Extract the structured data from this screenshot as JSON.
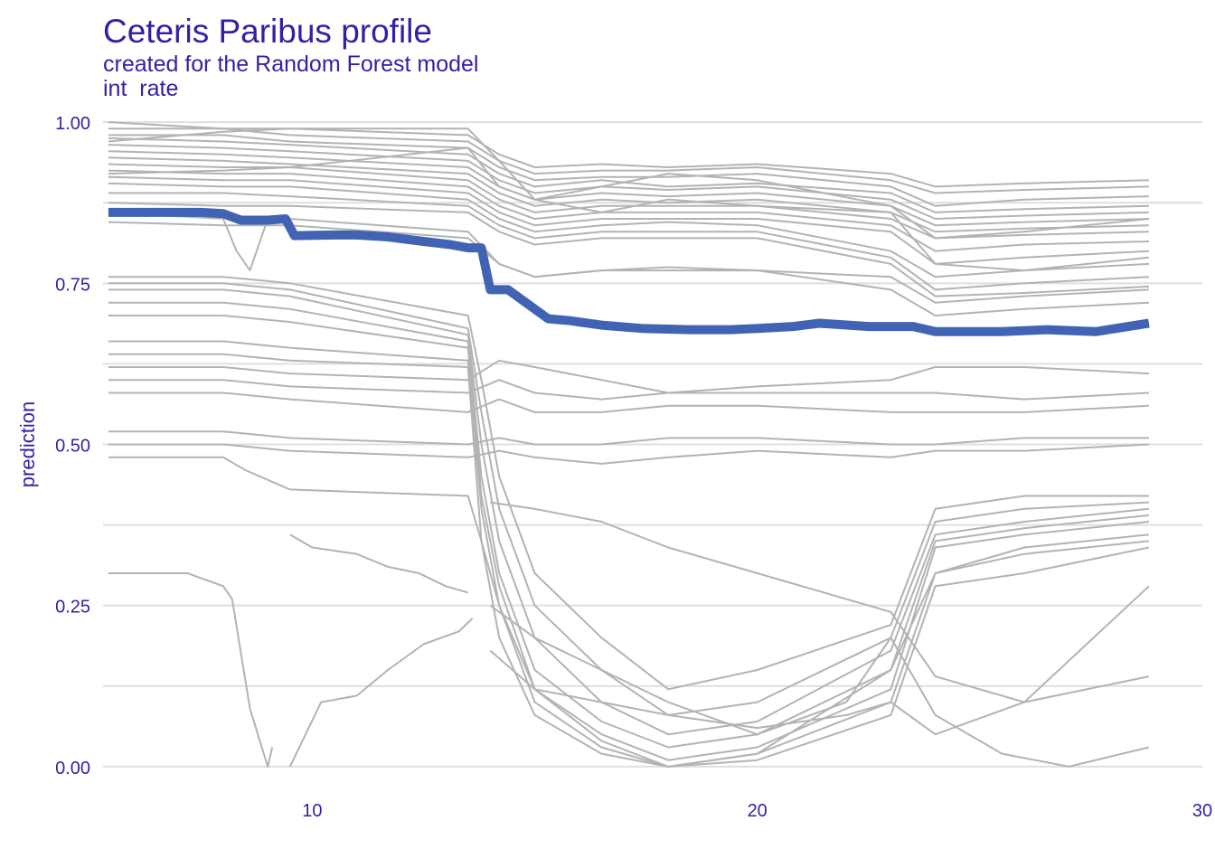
{
  "colors": {
    "text": "#371ea3",
    "grid": "#dfdfdf",
    "ice_line": "#b3b3b3",
    "profile_line": "#4063b3"
  },
  "header": {
    "title": "Ceteris Paribus profile",
    "subtitle": "created for the Random Forest model",
    "variable": "int  rate"
  },
  "chart_data": {
    "type": "line",
    "title": "Ceteris Paribus profile",
    "subtitle": "created for the Random Forest model",
    "variable": "int  rate",
    "xlabel": "",
    "ylabel": "prediction",
    "xlim": [
      5.3,
      30
    ],
    "ylim": [
      -0.01,
      1.01
    ],
    "x_ticks": [
      10,
      20,
      30
    ],
    "y_ticks": [
      0.0,
      0.25,
      0.5,
      0.75,
      1.0
    ],
    "y_tick_labels": [
      "0.00",
      "0.25",
      "0.50",
      "0.75",
      "1.00"
    ],
    "grid": true,
    "legend": "none",
    "series": [
      {
        "role": "aggregated-profile",
        "x": [
          5.42,
          6.5,
          7.5,
          8.0,
          8.4,
          9.0,
          9.4,
          9.6,
          10.5,
          11.0,
          11.7,
          12.5,
          13.1,
          13.5,
          13.8,
          14.0,
          14.4,
          14.8,
          15.3,
          15.8,
          16.5,
          17.4,
          18.5,
          19.4,
          20.0,
          20.8,
          21.4,
          22.5,
          23.5,
          24.0,
          24.6,
          25.5,
          26.5,
          27.6,
          28.8
        ],
        "y": [
          0.86,
          0.86,
          0.86,
          0.858,
          0.848,
          0.848,
          0.85,
          0.824,
          0.825,
          0.825,
          0.822,
          0.815,
          0.81,
          0.805,
          0.805,
          0.74,
          0.74,
          0.72,
          0.695,
          0.692,
          0.685,
          0.68,
          0.678,
          0.678,
          0.68,
          0.683,
          0.688,
          0.683,
          0.683,
          0.675,
          0.675,
          0.675,
          0.678,
          0.675,
          0.688
        ]
      },
      {
        "role": "ice",
        "x": [
          5.42,
          8.0,
          9.5,
          13.5,
          14.2,
          15.0,
          16.5,
          18.0,
          20.0,
          23.0,
          24.0,
          26.0,
          28.8
        ],
        "y": [
          1.0,
          0.99,
          0.99,
          0.98,
          0.95,
          0.93,
          0.935,
          0.93,
          0.935,
          0.92,
          0.9,
          0.905,
          0.91
        ]
      },
      {
        "role": "ice",
        "x": [
          5.42,
          8.0,
          9.5,
          13.5,
          14.2,
          15.0,
          16.5,
          18.0,
          20.0,
          23.0,
          24.0,
          26.0,
          28.8
        ],
        "y": [
          0.99,
          0.99,
          0.98,
          0.97,
          0.94,
          0.92,
          0.925,
          0.925,
          0.93,
          0.91,
          0.89,
          0.895,
          0.9
        ]
      },
      {
        "role": "ice",
        "x": [
          5.42,
          8.0,
          9.5,
          13.5,
          14.2,
          15.0,
          16.5,
          18.0,
          20.0,
          23.0,
          24.0,
          26.0,
          28.8
        ],
        "y": [
          0.98,
          0.98,
          0.97,
          0.96,
          0.93,
          0.91,
          0.915,
          0.915,
          0.92,
          0.9,
          0.87,
          0.88,
          0.885
        ]
      },
      {
        "role": "ice",
        "x": [
          5.42,
          8.0,
          9.5,
          13.5,
          14.2,
          15.0,
          16.5,
          18.0,
          20.0,
          23.0,
          24.0,
          26.0,
          28.8
        ],
        "y": [
          0.975,
          0.97,
          0.965,
          0.95,
          0.92,
          0.9,
          0.91,
          0.9,
          0.905,
          0.89,
          0.86,
          0.865,
          0.87
        ]
      },
      {
        "role": "ice",
        "x": [
          5.42,
          8.0,
          9.5,
          13.5,
          14.2,
          15.0,
          16.5,
          18.0,
          20.0,
          23.0,
          24.0,
          26.0,
          28.8
        ],
        "y": [
          0.965,
          0.96,
          0.955,
          0.94,
          0.91,
          0.89,
          0.9,
          0.895,
          0.9,
          0.88,
          0.85,
          0.855,
          0.86
        ]
      },
      {
        "role": "ice",
        "x": [
          5.42,
          8.0,
          9.5,
          13.5,
          14.2,
          15.0,
          16.5,
          18.0,
          20.0,
          23.0,
          24.0,
          26.0,
          28.8
        ],
        "y": [
          0.955,
          0.95,
          0.945,
          0.93,
          0.9,
          0.88,
          0.89,
          0.885,
          0.89,
          0.87,
          0.84,
          0.845,
          0.85
        ]
      },
      {
        "role": "ice",
        "x": [
          5.42,
          8.0,
          9.5,
          13.5,
          14.2,
          15.0,
          16.5,
          18.0,
          20.0,
          23.0,
          24.0,
          26.0,
          28.8
        ],
        "y": [
          0.945,
          0.94,
          0.935,
          0.92,
          0.89,
          0.87,
          0.88,
          0.875,
          0.88,
          0.86,
          0.83,
          0.835,
          0.84
        ]
      },
      {
        "role": "ice",
        "x": [
          5.42,
          8.0,
          9.5,
          13.5,
          14.2,
          15.0,
          16.5,
          18.0,
          20.0,
          23.0,
          24.0,
          26.0,
          28.8
        ],
        "y": [
          0.935,
          0.93,
          0.93,
          0.91,
          0.88,
          0.86,
          0.87,
          0.87,
          0.87,
          0.85,
          0.82,
          0.825,
          0.83
        ]
      },
      {
        "role": "ice",
        "x": [
          5.42,
          8.0,
          9.5,
          13.5,
          14.2,
          15.0,
          16.5,
          18.0,
          20.0,
          23.0,
          24.0,
          26.0,
          28.8
        ],
        "y": [
          0.925,
          0.92,
          0.92,
          0.9,
          0.87,
          0.85,
          0.86,
          0.86,
          0.86,
          0.84,
          0.8,
          0.81,
          0.815
        ]
      },
      {
        "role": "ice",
        "x": [
          5.42,
          8.0,
          9.5,
          13.5,
          14.2,
          15.0,
          16.5,
          18.0,
          20.0,
          23.0,
          24.0,
          26.0,
          28.8
        ],
        "y": [
          0.915,
          0.91,
          0.91,
          0.89,
          0.86,
          0.84,
          0.85,
          0.85,
          0.85,
          0.83,
          0.78,
          0.79,
          0.8
        ]
      },
      {
        "role": "ice",
        "x": [
          5.42,
          8.0,
          9.5,
          13.5,
          14.2,
          15.0,
          16.5,
          18.0,
          20.0,
          23.0,
          24.0,
          26.0,
          28.8
        ],
        "y": [
          0.905,
          0.9,
          0.9,
          0.88,
          0.85,
          0.83,
          0.84,
          0.845,
          0.84,
          0.8,
          0.76,
          0.77,
          0.78
        ]
      },
      {
        "role": "ice",
        "x": [
          5.42,
          8.0,
          9.5,
          13.5,
          14.2,
          15.0,
          16.5,
          18.0,
          20.0,
          23.0,
          24.0,
          26.0,
          28.8
        ],
        "y": [
          0.89,
          0.89,
          0.885,
          0.87,
          0.84,
          0.82,
          0.83,
          0.83,
          0.83,
          0.79,
          0.74,
          0.75,
          0.76
        ]
      },
      {
        "role": "ice",
        "x": [
          5.42,
          8.0,
          9.5,
          13.5,
          14.2,
          15.0,
          16.5,
          18.0,
          20.0,
          23.0,
          24.0,
          26.0,
          28.8
        ],
        "y": [
          0.875,
          0.87,
          0.87,
          0.86,
          0.83,
          0.81,
          0.82,
          0.82,
          0.82,
          0.78,
          0.73,
          0.735,
          0.745
        ]
      },
      {
        "role": "ice",
        "x": [
          5.42,
          8.0,
          8.3,
          8.6,
          9.0,
          9.5,
          13.5,
          14.2,
          15.0,
          16.5,
          18.0,
          20.0,
          23.0,
          24.0,
          26.0,
          28.8
        ],
        "y": [
          0.86,
          0.85,
          0.8,
          0.77,
          0.85,
          0.85,
          0.83,
          0.78,
          0.76,
          0.77,
          0.775,
          0.77,
          0.76,
          0.72,
          0.73,
          0.74
        ]
      },
      {
        "role": "ice",
        "x": [
          5.42,
          8.0,
          9.5,
          13.5,
          14.2,
          15.0,
          16.5,
          18.0,
          20.0,
          23.0,
          24.0,
          26.0,
          28.8
        ],
        "y": [
          0.845,
          0.84,
          0.84,
          0.82,
          0.78,
          0.76,
          0.77,
          0.77,
          0.77,
          0.74,
          0.7,
          0.71,
          0.72
        ]
      },
      {
        "role": "ice",
        "x": [
          5.42,
          8.0,
          9.5,
          13.5,
          13.8,
          14.2,
          15.0,
          16.5,
          18.0,
          20.0,
          23.0,
          24.0,
          26.0,
          28.8
        ],
        "y": [
          0.76,
          0.76,
          0.75,
          0.7,
          0.6,
          0.45,
          0.3,
          0.2,
          0.12,
          0.15,
          0.22,
          0.4,
          0.42,
          0.42
        ]
      },
      {
        "role": "ice",
        "x": [
          5.42,
          8.0,
          9.5,
          13.5,
          13.8,
          14.2,
          15.0,
          16.5,
          18.0,
          20.0,
          23.0,
          24.0,
          26.0,
          28.8
        ],
        "y": [
          0.75,
          0.75,
          0.74,
          0.68,
          0.55,
          0.4,
          0.25,
          0.15,
          0.08,
          0.1,
          0.2,
          0.38,
          0.4,
          0.41
        ]
      },
      {
        "role": "ice",
        "x": [
          5.42,
          8.0,
          9.5,
          13.5,
          13.8,
          14.2,
          15.0,
          16.5,
          18.0,
          20.0,
          23.0,
          24.0,
          26.0,
          28.8
        ],
        "y": [
          0.74,
          0.74,
          0.73,
          0.67,
          0.5,
          0.35,
          0.2,
          0.1,
          0.05,
          0.07,
          0.18,
          0.36,
          0.38,
          0.4
        ]
      },
      {
        "role": "ice",
        "x": [
          5.42,
          8.0,
          9.5,
          13.5,
          13.8,
          14.2,
          15.0,
          16.5,
          18.0,
          20.0,
          23.0,
          24.0,
          26.0,
          28.8
        ],
        "y": [
          0.72,
          0.72,
          0.71,
          0.66,
          0.45,
          0.3,
          0.15,
          0.07,
          0.03,
          0.05,
          0.15,
          0.35,
          0.37,
          0.39
        ]
      },
      {
        "role": "ice",
        "x": [
          5.42,
          8.0,
          9.5,
          13.5,
          13.8,
          14.2,
          15.0,
          16.5,
          18.0,
          20.0,
          23.0,
          24.0,
          26.0,
          28.8
        ],
        "y": [
          0.7,
          0.7,
          0.69,
          0.65,
          0.42,
          0.28,
          0.12,
          0.05,
          0.01,
          0.03,
          0.12,
          0.34,
          0.36,
          0.38
        ]
      },
      {
        "role": "ice",
        "x": [
          5.42,
          8.0,
          9.5,
          13.5,
          13.8,
          14.2,
          15.0,
          16.5,
          18.0,
          20.0,
          23.0,
          24.0,
          26.0,
          28.8
        ],
        "y": [
          0.66,
          0.66,
          0.65,
          0.63,
          0.4,
          0.25,
          0.1,
          0.03,
          0.0,
          0.02,
          0.1,
          0.3,
          0.33,
          0.35
        ]
      },
      {
        "role": "ice",
        "x": [
          5.42,
          8.0,
          9.5,
          13.5,
          13.8,
          14.2,
          15.0,
          16.5,
          18.0,
          20.0,
          23.0,
          24.0,
          26.0,
          28.8
        ],
        "y": [
          0.64,
          0.64,
          0.63,
          0.62,
          0.35,
          0.2,
          0.08,
          0.02,
          0.0,
          0.01,
          0.08,
          0.28,
          0.3,
          0.34
        ]
      },
      {
        "role": "ice",
        "x": [
          5.42,
          8.0,
          9.5,
          13.5,
          14.2,
          15.0,
          16.5,
          18.0,
          20.0,
          23.0,
          24.0,
          26.0,
          28.8
        ],
        "y": [
          0.62,
          0.62,
          0.61,
          0.6,
          0.63,
          0.62,
          0.6,
          0.58,
          0.59,
          0.6,
          0.62,
          0.62,
          0.61
        ]
      },
      {
        "role": "ice",
        "x": [
          5.42,
          8.0,
          9.5,
          13.5,
          14.2,
          15.0,
          16.5,
          18.0,
          20.0,
          23.0,
          24.0,
          26.0,
          28.8
        ],
        "y": [
          0.6,
          0.6,
          0.59,
          0.58,
          0.6,
          0.58,
          0.57,
          0.58,
          0.58,
          0.58,
          0.58,
          0.57,
          0.58
        ]
      },
      {
        "role": "ice",
        "x": [
          5.42,
          8.0,
          9.5,
          13.5,
          14.2,
          15.0,
          16.5,
          18.0,
          20.0,
          23.0,
          24.0,
          26.0,
          28.8
        ],
        "y": [
          0.58,
          0.58,
          0.57,
          0.55,
          0.57,
          0.55,
          0.55,
          0.56,
          0.56,
          0.55,
          0.55,
          0.55,
          0.56
        ]
      },
      {
        "role": "ice",
        "x": [
          5.42,
          8.0,
          9.5,
          13.5,
          14.2,
          15.0,
          16.5,
          18.0,
          20.0,
          23.0,
          24.0,
          26.0,
          28.8
        ],
        "y": [
          0.52,
          0.52,
          0.51,
          0.5,
          0.51,
          0.5,
          0.5,
          0.51,
          0.51,
          0.5,
          0.5,
          0.51,
          0.51
        ]
      },
      {
        "role": "ice",
        "x": [
          5.42,
          8.0,
          9.5,
          13.5,
          14.2,
          15.0,
          16.5,
          18.0,
          20.0,
          23.0,
          24.0,
          26.0,
          28.8
        ],
        "y": [
          0.5,
          0.5,
          0.49,
          0.48,
          0.49,
          0.48,
          0.47,
          0.48,
          0.49,
          0.48,
          0.49,
          0.49,
          0.5
        ]
      },
      {
        "role": "ice",
        "x": [
          5.42,
          8.0,
          8.5,
          9.5,
          13.5,
          13.8,
          14.2,
          15.0,
          16.5,
          18.0,
          20.0,
          23.0,
          24.0,
          26.0,
          28.8
        ],
        "y": [
          0.48,
          0.48,
          0.46,
          0.43,
          0.42,
          0.35,
          0.25,
          0.12,
          0.04,
          0.0,
          0.02,
          0.15,
          0.3,
          0.34,
          0.36
        ]
      },
      {
        "role": "ice",
        "x": [
          5.42,
          7.2,
          8.0,
          8.2,
          8.6,
          9.0,
          9.1
        ],
        "y": [
          0.3,
          0.3,
          0.28,
          0.26,
          0.09,
          0.0,
          0.03
        ]
      },
      {
        "role": "ice",
        "x": [
          9.5,
          10.2,
          11.0,
          11.7,
          12.5,
          13.3,
          13.6
        ],
        "y": [
          0.0,
          0.1,
          0.11,
          0.15,
          0.19,
          0.21,
          0.23
        ]
      },
      {
        "role": "ice",
        "x": [
          9.5,
          10.0,
          11.0,
          11.7,
          12.4,
          13.0,
          13.5
        ],
        "y": [
          0.36,
          0.34,
          0.33,
          0.31,
          0.3,
          0.28,
          0.27
        ]
      },
      {
        "role": "ice",
        "x": [
          14.0,
          15.0,
          16.5,
          18.0,
          20.0,
          22.0,
          23.0,
          24.0,
          26.0,
          28.8
        ],
        "y": [
          0.41,
          0.4,
          0.38,
          0.34,
          0.3,
          0.26,
          0.24,
          0.14,
          0.1,
          0.14
        ]
      },
      {
        "role": "ice",
        "x": [
          14.0,
          15.0,
          16.5,
          18.0,
          20.0,
          22.0,
          23.0,
          24.0,
          25.5,
          27.0,
          28.8
        ],
        "y": [
          0.25,
          0.2,
          0.15,
          0.1,
          0.05,
          0.1,
          0.2,
          0.08,
          0.02,
          0.0,
          0.03
        ]
      },
      {
        "role": "ice",
        "x": [
          14.0,
          15.0,
          16.5,
          18.0,
          20.0,
          22.0,
          23.0,
          24.0,
          26.0,
          28.8
        ],
        "y": [
          0.18,
          0.12,
          0.1,
          0.08,
          0.06,
          0.08,
          0.1,
          0.05,
          0.1,
          0.28
        ]
      },
      {
        "role": "ice",
        "x": [
          5.42,
          8.0,
          9.5,
          13.5,
          14.2,
          15.0,
          16.5,
          18.0,
          20.0,
          23.0,
          24.0,
          26.0,
          28.8
        ],
        "y": [
          0.97,
          0.985,
          0.99,
          0.99,
          0.94,
          0.88,
          0.9,
          0.92,
          0.91,
          0.87,
          0.82,
          0.83,
          0.85
        ]
      },
      {
        "role": "ice",
        "x": [
          5.42,
          8.0,
          9.5,
          13.5,
          14.2,
          15.0,
          16.5,
          18.0,
          20.0,
          23.0,
          24.0,
          26.0,
          28.8
        ],
        "y": [
          0.92,
          0.925,
          0.93,
          0.96,
          0.9,
          0.88,
          0.86,
          0.88,
          0.87,
          0.86,
          0.78,
          0.77,
          0.79
        ]
      }
    ]
  }
}
